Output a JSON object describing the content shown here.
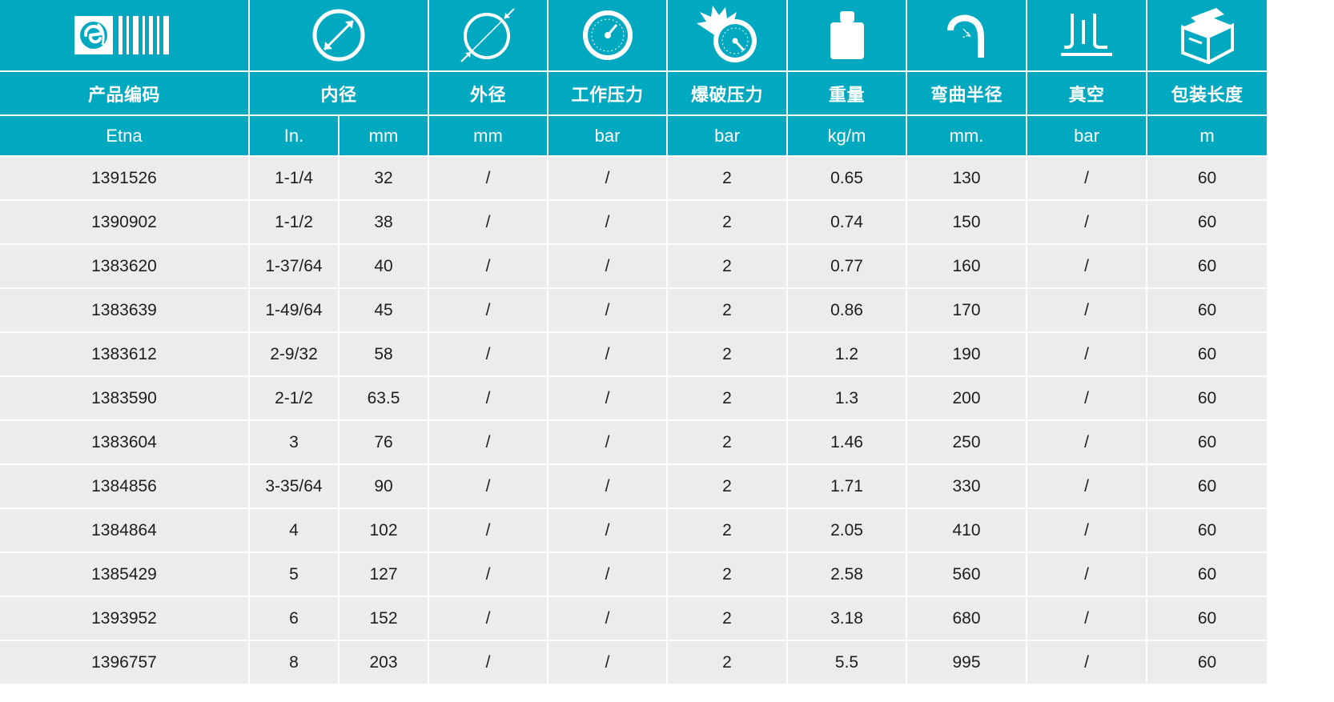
{
  "colors": {
    "header_bg": "#00a9bf",
    "header_text": "#ffffff",
    "row_bg": "#ececec",
    "row_text": "#1e1e1e"
  },
  "icons": [
    "brand-logo-icon",
    "inner-diameter-icon",
    "outer-diameter-icon",
    "working-pressure-gauge-icon",
    "burst-pressure-icon",
    "weight-icon",
    "bend-radius-icon",
    "vacuum-icon",
    "package-box-icon"
  ],
  "headers": [
    "产品编码",
    "内径",
    "外径",
    "工作压力",
    "爆破压力",
    "重量",
    "弯曲半径",
    "真空",
    "包装长度"
  ],
  "units": [
    "Etna",
    "In.",
    "mm",
    "mm",
    "bar",
    "bar",
    "kg/m",
    "mm.",
    "bar",
    "m"
  ],
  "rows": [
    [
      "1391526",
      "1-1/4",
      "32",
      "/",
      "/",
      "2",
      "0.65",
      "130",
      "/",
      "60"
    ],
    [
      "1390902",
      "1-1/2",
      "38",
      "/",
      "/",
      "2",
      "0.74",
      "150",
      "/",
      "60"
    ],
    [
      "1383620",
      "1-37/64",
      "40",
      "/",
      "/",
      "2",
      "0.77",
      "160",
      "/",
      "60"
    ],
    [
      "1383639",
      "1-49/64",
      "45",
      "/",
      "/",
      "2",
      "0.86",
      "170",
      "/",
      "60"
    ],
    [
      "1383612",
      "2-9/32",
      "58",
      "/",
      "/",
      "2",
      "1.2",
      "190",
      "/",
      "60"
    ],
    [
      "1383590",
      "2-1/2",
      "63.5",
      "/",
      "/",
      "2",
      "1.3",
      "200",
      "/",
      "60"
    ],
    [
      "1383604",
      "3",
      "76",
      "/",
      "/",
      "2",
      "1.46",
      "250",
      "/",
      "60"
    ],
    [
      "1384856",
      "3-35/64",
      "90",
      "/",
      "/",
      "2",
      "1.71",
      "330",
      "/",
      "60"
    ],
    [
      "1384864",
      "4",
      "102",
      "/",
      "/",
      "2",
      "2.05",
      "410",
      "/",
      "60"
    ],
    [
      "1385429",
      "5",
      "127",
      "/",
      "/",
      "2",
      "2.58",
      "560",
      "/",
      "60"
    ],
    [
      "1393952",
      "6",
      "152",
      "/",
      "/",
      "2",
      "3.18",
      "680",
      "/",
      "60"
    ],
    [
      "1396757",
      "8",
      "203",
      "/",
      "/",
      "2",
      "5.5",
      "995",
      "/",
      "60"
    ]
  ]
}
